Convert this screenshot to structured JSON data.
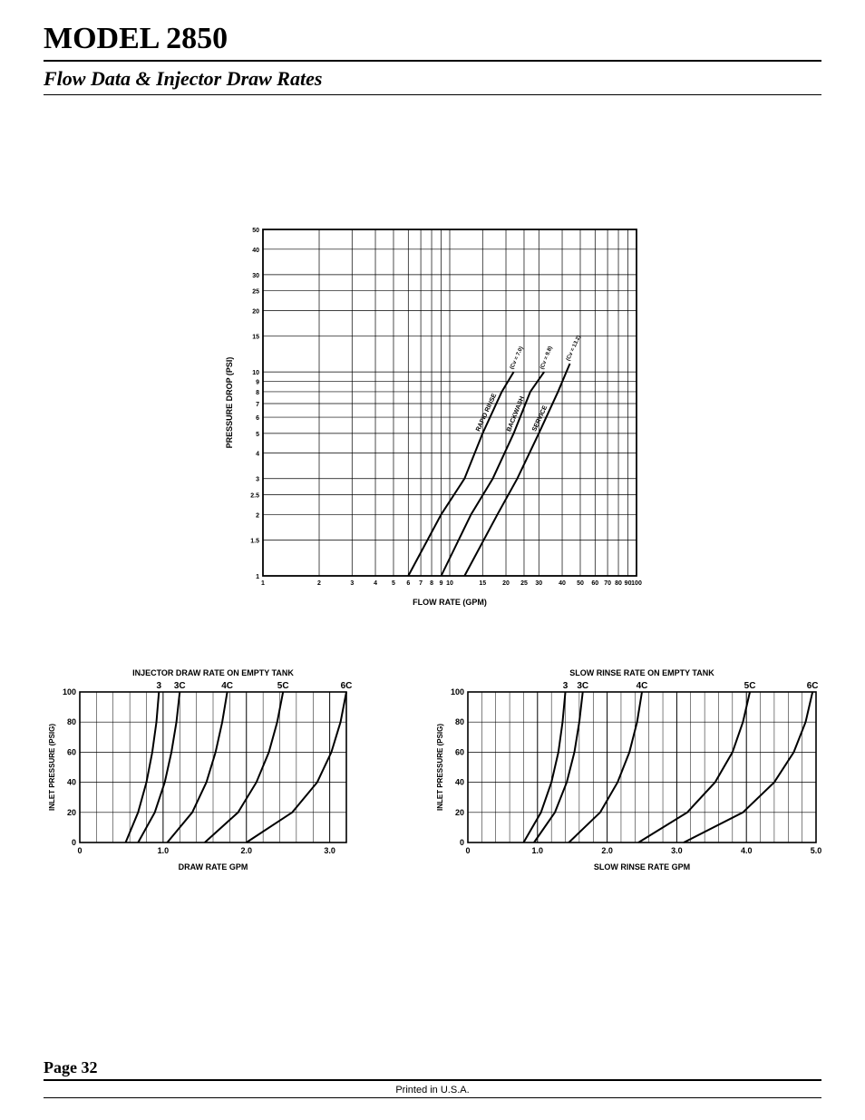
{
  "header": {
    "model_title": "MODEL 2850",
    "subtitle": "Flow Data & Injector Draw Rates"
  },
  "footer": {
    "page_label": "Page 32",
    "printed": "Printed in U.S.A."
  },
  "main_chart": {
    "type": "line-loglog",
    "x_label": "FLOW  RATE   (GPM)",
    "y_label": "PRESSURE  DROP   (PSI)",
    "x_ticks": [
      1,
      2,
      3,
      4,
      5,
      6,
      7,
      8,
      9,
      10,
      15,
      20,
      25,
      30,
      40,
      50,
      60,
      70,
      80,
      90,
      100
    ],
    "y_ticks": [
      1,
      1.5,
      2,
      2.5,
      3,
      4,
      5,
      6,
      7,
      8,
      9,
      10,
      15,
      20,
      25,
      30,
      40,
      50
    ],
    "x_min": 1,
    "x_max": 100,
    "y_min": 1,
    "y_max": 50,
    "line_color": "#000000",
    "grid_color": "#000000",
    "background_color": "#ffffff",
    "tick_fontsize": 7,
    "label_fontsize": 9,
    "series": [
      {
        "label": "RAPID RINSE",
        "cv_label": "(Cv = 7.0)",
        "points": [
          [
            6,
            1
          ],
          [
            9,
            2
          ],
          [
            12,
            3
          ],
          [
            15,
            5
          ],
          [
            19,
            8
          ],
          [
            22,
            10
          ]
        ]
      },
      {
        "label": "BACKWASH",
        "cv_label": "(Cv = 9.8)",
        "points": [
          [
            9,
            1
          ],
          [
            13,
            2
          ],
          [
            17,
            3
          ],
          [
            22,
            5
          ],
          [
            27,
            8
          ],
          [
            32,
            10
          ]
        ]
      },
      {
        "label": "SERVICE",
        "cv_label": "(Cv = 13.2)",
        "points": [
          [
            12,
            1
          ],
          [
            18,
            2
          ],
          [
            23,
            3
          ],
          [
            30,
            5
          ],
          [
            38,
            8
          ],
          [
            44,
            11
          ]
        ]
      }
    ]
  },
  "draw_chart": {
    "type": "line",
    "title": "INJECTOR DRAW RATE ON EMPTY TANK",
    "x_label": "DRAW RATE GPM",
    "y_label": "INLET PRESSURE (PSIG)",
    "x_ticks": [
      0,
      1.0,
      2.0,
      3.0
    ],
    "x_major": [
      0,
      1.0,
      2.0,
      3.0
    ],
    "x_max": 3.2,
    "y_ticks": [
      0,
      20,
      40,
      60,
      80,
      100
    ],
    "y_max": 100,
    "top_labels": [
      "3",
      "3C",
      "4C",
      "5C",
      "6C"
    ],
    "line_color": "#000000",
    "grid_color": "#000000",
    "background_color": "#ffffff",
    "tick_fontsize": 9,
    "label_fontsize": 8,
    "series": [
      {
        "name": "3",
        "points": [
          [
            0.55,
            0
          ],
          [
            0.7,
            20
          ],
          [
            0.8,
            40
          ],
          [
            0.87,
            60
          ],
          [
            0.92,
            80
          ],
          [
            0.95,
            100
          ]
        ]
      },
      {
        "name": "3C",
        "points": [
          [
            0.7,
            0
          ],
          [
            0.9,
            20
          ],
          [
            1.02,
            40
          ],
          [
            1.1,
            60
          ],
          [
            1.16,
            80
          ],
          [
            1.2,
            100
          ]
        ]
      },
      {
        "name": "4C",
        "points": [
          [
            1.05,
            0
          ],
          [
            1.35,
            20
          ],
          [
            1.52,
            40
          ],
          [
            1.63,
            60
          ],
          [
            1.71,
            80
          ],
          [
            1.77,
            100
          ]
        ]
      },
      {
        "name": "5C",
        "points": [
          [
            1.5,
            0
          ],
          [
            1.9,
            20
          ],
          [
            2.12,
            40
          ],
          [
            2.27,
            60
          ],
          [
            2.37,
            80
          ],
          [
            2.44,
            100
          ]
        ]
      },
      {
        "name": "6C",
        "points": [
          [
            2.0,
            0
          ],
          [
            2.55,
            20
          ],
          [
            2.85,
            40
          ],
          [
            3.02,
            60
          ],
          [
            3.13,
            80
          ],
          [
            3.2,
            100
          ]
        ]
      }
    ]
  },
  "rinse_chart": {
    "type": "line",
    "title": "SLOW RINSE RATE ON EMPTY TANK",
    "x_label": "SLOW RINSE RATE GPM",
    "y_label": "INLET PRESSURE (PSIG)",
    "x_ticks": [
      0,
      1.0,
      2.0,
      3.0,
      4.0,
      5.0
    ],
    "x_max": 5.0,
    "y_ticks": [
      0,
      20,
      40,
      60,
      80,
      100
    ],
    "y_max": 100,
    "top_labels": [
      "3",
      "3C",
      "4C",
      "5C",
      "6C"
    ],
    "line_color": "#000000",
    "grid_color": "#000000",
    "background_color": "#ffffff",
    "tick_fontsize": 9,
    "label_fontsize": 8,
    "series": [
      {
        "name": "3",
        "points": [
          [
            0.8,
            0
          ],
          [
            1.05,
            20
          ],
          [
            1.2,
            40
          ],
          [
            1.3,
            60
          ],
          [
            1.36,
            80
          ],
          [
            1.4,
            100
          ]
        ]
      },
      {
        "name": "3C",
        "points": [
          [
            0.95,
            0
          ],
          [
            1.25,
            20
          ],
          [
            1.42,
            40
          ],
          [
            1.53,
            60
          ],
          [
            1.6,
            80
          ],
          [
            1.65,
            100
          ]
        ]
      },
      {
        "name": "4C",
        "points": [
          [
            1.45,
            0
          ],
          [
            1.9,
            20
          ],
          [
            2.15,
            40
          ],
          [
            2.32,
            60
          ],
          [
            2.43,
            80
          ],
          [
            2.5,
            100
          ]
        ]
      },
      {
        "name": "5C",
        "points": [
          [
            2.45,
            0
          ],
          [
            3.15,
            20
          ],
          [
            3.55,
            40
          ],
          [
            3.8,
            60
          ],
          [
            3.95,
            80
          ],
          [
            4.05,
            100
          ]
        ]
      },
      {
        "name": "6C",
        "points": [
          [
            3.1,
            0
          ],
          [
            3.95,
            20
          ],
          [
            4.4,
            40
          ],
          [
            4.68,
            60
          ],
          [
            4.85,
            80
          ],
          [
            4.95,
            100
          ]
        ]
      }
    ]
  }
}
